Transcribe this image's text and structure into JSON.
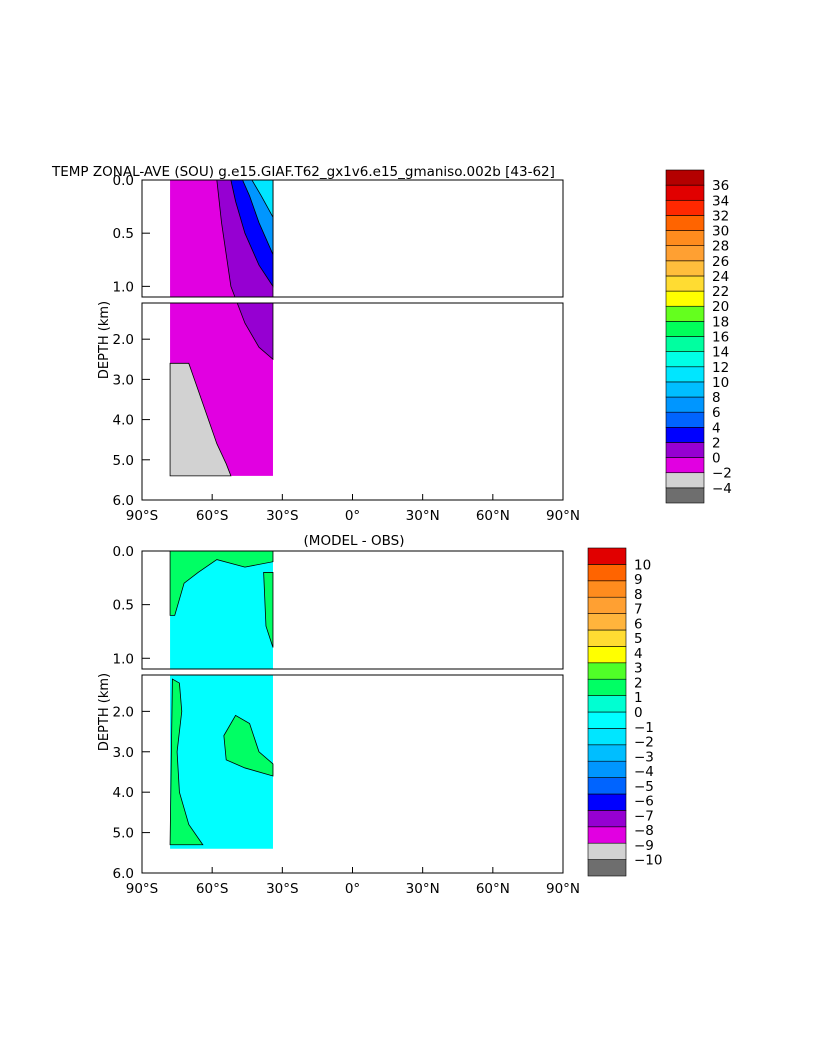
{
  "colors": {
    "temp_scale": [
      "#6e6e6e",
      "#d2d2d2",
      "#e100e1",
      "#9600d2",
      "#0000ff",
      "#0064ff",
      "#0096ff",
      "#00beff",
      "#00e6ff",
      "#00ffe6",
      "#00ffa0",
      "#00ff5a",
      "#64ff1e",
      "#ffff00",
      "#ffdc32",
      "#ffbe3c",
      "#ffa032",
      "#ff8c1e",
      "#ff6400",
      "#ff2800",
      "#e10000",
      "#b40000"
    ],
    "diff_scale": [
      "#6e6e6e",
      "#d2d2d2",
      "#e100e1",
      "#9600d2",
      "#0000ff",
      "#0064ff",
      "#0096ff",
      "#00beff",
      "#00e6ff",
      "#00ffff",
      "#00ffd2",
      "#00ff64",
      "#50ff28",
      "#ffff00",
      "#ffdc32",
      "#ffb43c",
      "#ffa032",
      "#ff8c1e",
      "#ff6400",
      "#e10000"
    ]
  },
  "chart_data": [
    {
      "type": "heatmap",
      "title": "TEMP ZONAL-AVE (SOU) g.e15.GIAF.T62_gx1v6.e15_gmaniso.002b [43-62]",
      "xlabel": "",
      "ylabel": "DEPTH (km)",
      "x_ticks": [
        "90°S",
        "60°S",
        "30°S",
        "0°",
        "30°N",
        "60°N",
        "90°N"
      ],
      "x_tick_values": [
        -90,
        -60,
        -30,
        0,
        30,
        60,
        90
      ],
      "y_ticks": [
        "0.0",
        "0.5",
        "1.0",
        "2.0",
        "3.0",
        "4.0",
        "5.0",
        "6.0"
      ],
      "y_tick_values": [
        0.0,
        0.5,
        1.0,
        2.0,
        3.0,
        4.0,
        5.0,
        6.0
      ],
      "xlim": [
        -90,
        90
      ],
      "ylim": [
        0,
        6
      ],
      "axis_break_km": 1.1,
      "colorbar_levels": [
        "36",
        "34",
        "32",
        "30",
        "28",
        "26",
        "24",
        "22",
        "20",
        "18",
        "16",
        "14",
        "12",
        "10",
        "8",
        "6",
        "4",
        "2",
        "0",
        "-2",
        "-4"
      ],
      "data_extent_lat": [
        -78,
        -34
      ],
      "regions": [
        {
          "label": "-2 to 0",
          "lat_range": [
            -78,
            -66
          ],
          "depth_range": [
            2.6,
            5.4
          ]
        },
        {
          "label": "0 to 2",
          "lat_range": [
            -77,
            -34
          ],
          "depth_range": [
            0,
            5.4
          ]
        },
        {
          "label": "2 to 4",
          "lat_range": [
            -58,
            -34
          ],
          "depth_range": [
            0,
            2.5
          ]
        },
        {
          "label": "4 to 6",
          "lat_range": [
            -52,
            -36
          ],
          "depth_range": [
            0,
            1.0
          ]
        },
        {
          "label": "6 to 10",
          "lat_range": [
            -48,
            -34
          ],
          "depth_range": [
            0,
            0.7
          ]
        }
      ]
    },
    {
      "type": "heatmap",
      "title": "(MODEL - OBS)",
      "xlabel": "",
      "ylabel": "DEPTH (km)",
      "x_ticks": [
        "90°S",
        "60°S",
        "30°S",
        "0°",
        "30°N",
        "60°N",
        "90°N"
      ],
      "x_tick_values": [
        -90,
        -60,
        -30,
        0,
        30,
        60,
        90
      ],
      "y_ticks": [
        "0.0",
        "0.5",
        "1.0",
        "2.0",
        "3.0",
        "4.0",
        "5.0",
        "6.0"
      ],
      "y_tick_values": [
        0.0,
        0.5,
        1.0,
        2.0,
        3.0,
        4.0,
        5.0,
        6.0
      ],
      "xlim": [
        -90,
        90
      ],
      "ylim": [
        0,
        6
      ],
      "axis_break_km": 1.1,
      "colorbar_levels": [
        "10",
        "9",
        "8",
        "7",
        "6",
        "5",
        "4",
        "3",
        "2",
        "1",
        "0",
        "-1",
        "-2",
        "-3",
        "-4",
        "-5",
        "-6",
        "-7",
        "-8",
        "-9",
        "-10"
      ],
      "data_extent_lat": [
        -78,
        -34
      ],
      "regions": [
        {
          "label": "-1 to 0",
          "lat_range": [
            -77,
            -34
          ],
          "depth_range": [
            0,
            5.4
          ]
        },
        {
          "label": "0 to 1",
          "lat_range": [
            -78,
            -66
          ],
          "depth_range": [
            0,
            5.3
          ]
        },
        {
          "label": "0 to 1",
          "lat_range": [
            -55,
            -34
          ],
          "depth_range": [
            2.1,
            3.6
          ]
        }
      ]
    }
  ]
}
